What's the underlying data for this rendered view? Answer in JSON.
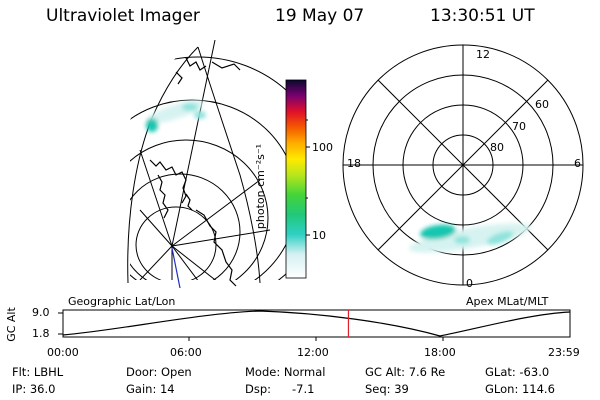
{
  "header": {
    "instrument": "Ultraviolet Imager",
    "date": "19 May 07",
    "time": "13:30:51 UT"
  },
  "colorbar": {
    "unit_label": "photon cm⁻²s⁻¹",
    "ticks": [
      "100",
      "10"
    ]
  },
  "geo_panel": {
    "caption": "Geographic Lat/Lon"
  },
  "polar_panel": {
    "caption": "Apex MLat/MLT",
    "mlt_labels": {
      "top": "12",
      "left": "18",
      "right": "6",
      "bottom": "0"
    },
    "lat_labels": [
      "60",
      "70",
      "80"
    ]
  },
  "altitude_plot": {
    "ylabel": "GC Alt",
    "y_ticks": [
      "9.0",
      "1.8"
    ],
    "x_ticks": [
      "00:00",
      "06:00",
      "12:00",
      "18:00",
      "23:59"
    ],
    "current_time_fraction": 0.563
  },
  "status": {
    "filter": "Flt: LBHL",
    "ip": "IP: 36.0",
    "door": "Door: Open",
    "gain": "Gain: 14",
    "mode": "Mode: Normal",
    "dsp_label": "Dsp:",
    "dsp_value": "-7.1",
    "gc_alt": "GC Alt: 7.6 Re",
    "seq": "Seq: 39",
    "glat": "GLat: -63.0",
    "glon": "GLon: 114.6"
  },
  "colors": {
    "current_time_marker": "#e0202a",
    "aurora_bright": "#18c6b0",
    "aurora_mid": "#8fe3dc",
    "aurora_faint": "#d7f3f1"
  }
}
